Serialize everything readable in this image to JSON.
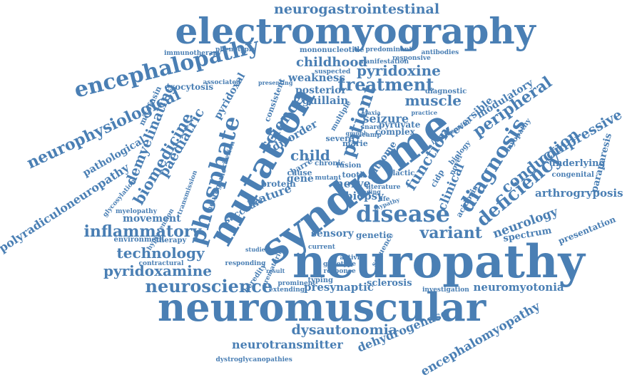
{
  "color": "#4a7fb4",
  "words": [
    "neuropathy",
    "neuromuscular",
    "syndrome",
    "electromyography",
    "mutation",
    "disease",
    "encephalopathy",
    "neurophysiological",
    "polyradiculoneuropathy",
    "neurogastrointestinal",
    "phosphate",
    "diagnosis",
    "deficiency",
    "neuroscience",
    "inflammatory",
    "technology",
    "pyridoxamine",
    "pyridoxine",
    "treatment",
    "childhood",
    "muscle",
    "patient",
    "science",
    "dysautonomia",
    "neurotransmitter",
    "dehydrogenase",
    "encephalomyopathy",
    "neuromyotonia",
    "presynaptic",
    "variant",
    "sensory",
    "genetic",
    "neurology",
    "arthrogryposis",
    "compressive",
    "conduction",
    "peripheral",
    "clinical",
    "modulatory",
    "reversible",
    "demyelinating",
    "biomedicine",
    "paediatric",
    "pathological",
    "child",
    "movement",
    "presentation",
    "spectrum",
    "paraparesis",
    "underlying",
    "sclerosis",
    "weakness",
    "guillain",
    "posterior",
    "seizure",
    "disorder",
    "pyridoxal",
    "function",
    "biopsy",
    "nerve",
    "feature",
    "protein",
    "gene",
    "saccadic",
    "outcome",
    "exocytosis",
    "mitofusin",
    "glycosylation",
    "immunotherapy",
    "hypertension",
    "environment",
    "therapy",
    "dystroglycanopathies",
    "neuromyotonia",
    "myopathy",
    "typing",
    "current",
    "extending",
    "prominent",
    "heredity",
    "severe",
    "marie",
    "tooth",
    "complex",
    "pyruvate",
    "cause",
    "barré",
    "cidp",
    "acidosis",
    "congenital",
    "investigation",
    "myelopathy",
    "transmission",
    "contractural",
    "mononucleotide",
    "antibodies",
    "phenotypic",
    "predominant",
    "responsive",
    "manifestation",
    "suspected",
    "diagnostic",
    "consistent",
    "multiple",
    "chronic",
    "fusion",
    "mutant",
    "life",
    "lactic",
    "novel",
    "biology",
    "sequence",
    "genotype",
    "response",
    "responding",
    "prematurity",
    "activity",
    "result",
    "studies",
    "neurogenic",
    "criterion",
    "associated",
    "presenting",
    "involvement",
    "literature",
    "camp",
    "snare",
    "gmpph",
    "mypathy",
    "leading",
    "ataxia",
    "practice",
    "acquired"
  ]
}
